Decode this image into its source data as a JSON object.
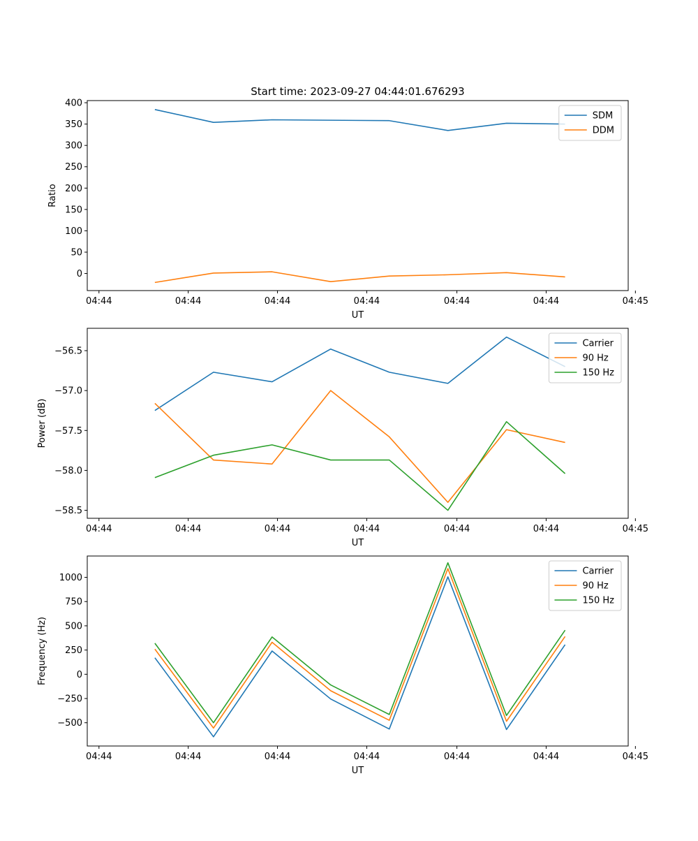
{
  "figure_title": "Start time: 2023-09-27 04:44:01.676293",
  "colors": {
    "blue": "#1f77b4",
    "orange": "#ff7f0e",
    "green": "#2ca02c",
    "legend_border": "#cccccc"
  },
  "chart_data": [
    {
      "type": "line",
      "title": "Start time: 2023-09-27 04:44:01.676293",
      "xlabel": "UT",
      "ylabel": "Ratio",
      "x": [
        1.25,
        1.9,
        2.55,
        3.2,
        3.85,
        4.5,
        5.15,
        5.8
      ],
      "xlim": [
        0.5,
        6.5
      ],
      "xticks": [
        0.63,
        1.62,
        2.61,
        3.6,
        4.6,
        5.59,
        6.58
      ],
      "xtick_labels": [
        "04:44",
        "04:44",
        "04:44",
        "04:44",
        "04:44",
        "04:44",
        "04:45"
      ],
      "ylim": [
        -40,
        405
      ],
      "yticks": [
        0,
        50,
        100,
        150,
        200,
        250,
        300,
        350,
        400
      ],
      "ytick_labels": [
        "0",
        "50",
        "100",
        "150",
        "200",
        "250",
        "300",
        "350",
        "400"
      ],
      "legend": "top-right",
      "series": [
        {
          "name": "SDM",
          "color": "#1f77b4",
          "values": [
            384,
            354,
            360,
            359,
            358,
            335,
            352,
            350
          ]
        },
        {
          "name": "DDM",
          "color": "#ff7f0e",
          "values": [
            -21,
            1,
            4,
            -19,
            -6,
            -3,
            2,
            -8
          ]
        }
      ]
    },
    {
      "type": "line",
      "xlabel": "UT",
      "ylabel": "Power (dB)",
      "x": [
        1.25,
        1.9,
        2.55,
        3.2,
        3.85,
        4.5,
        5.15,
        5.8
      ],
      "xlim": [
        0.5,
        6.5
      ],
      "xticks": [
        0.63,
        1.62,
        2.61,
        3.6,
        4.6,
        5.59,
        6.58
      ],
      "xtick_labels": [
        "04:44",
        "04:44",
        "04:44",
        "04:44",
        "04:44",
        "04:44",
        "04:45"
      ],
      "ylim": [
        -58.6,
        -56.22
      ],
      "yticks": [
        -58.5,
        -58.0,
        -57.5,
        -57.0,
        -56.5
      ],
      "ytick_labels": [
        "−58.5",
        "−58.0",
        "−57.5",
        "−57.0",
        "−56.5"
      ],
      "legend": "top-right",
      "series": [
        {
          "name": "Carrier",
          "color": "#1f77b4",
          "values": [
            -57.25,
            -56.77,
            -56.89,
            -56.48,
            -56.77,
            -56.91,
            -56.33,
            -56.7
          ]
        },
        {
          "name": "90 Hz",
          "color": "#ff7f0e",
          "values": [
            -57.16,
            -57.87,
            -57.92,
            -57.0,
            -57.58,
            -58.4,
            -57.49,
            -57.65
          ]
        },
        {
          "name": "150 Hz",
          "color": "#2ca02c",
          "values": [
            -58.09,
            -57.81,
            -57.68,
            -57.87,
            -57.87,
            -58.5,
            -57.39,
            -58.04
          ]
        }
      ]
    },
    {
      "type": "line",
      "xlabel": "UT",
      "ylabel": "Frequency (Hz)",
      "x": [
        1.25,
        1.9,
        2.55,
        3.2,
        3.85,
        4.5,
        5.15,
        5.8
      ],
      "xlim": [
        0.5,
        6.5
      ],
      "xticks": [
        0.63,
        1.62,
        2.61,
        3.6,
        4.6,
        5.59,
        6.58
      ],
      "xtick_labels": [
        "04:44",
        "04:44",
        "04:44",
        "04:44",
        "04:44",
        "04:44",
        "04:45"
      ],
      "ylim": [
        -740,
        1220
      ],
      "yticks": [
        -500,
        -250,
        0,
        250,
        500,
        750,
        1000
      ],
      "ytick_labels": [
        "−500",
        "−250",
        "0",
        "250",
        "500",
        "750",
        "1000"
      ],
      "legend": "top-right",
      "series": [
        {
          "name": "Carrier",
          "color": "#1f77b4",
          "values": [
            170,
            -645,
            240,
            -255,
            -565,
            1005,
            -570,
            305
          ]
        },
        {
          "name": "90 Hz",
          "color": "#ff7f0e",
          "values": [
            260,
            -555,
            330,
            -170,
            -475,
            1090,
            -485,
            390
          ]
        },
        {
          "name": "150 Hz",
          "color": "#2ca02c",
          "values": [
            320,
            -500,
            385,
            -110,
            -415,
            1150,
            -425,
            455
          ]
        }
      ]
    }
  ]
}
